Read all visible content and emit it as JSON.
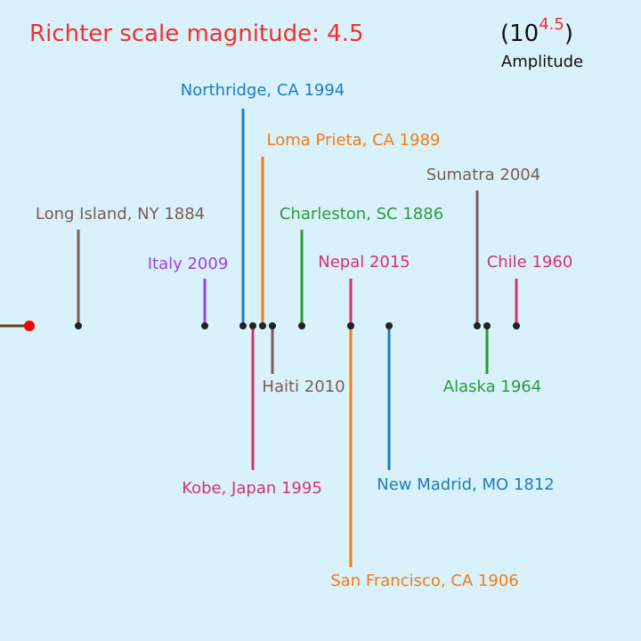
{
  "header": {
    "label": "Richter scale magnitude:",
    "magnitude": 4.5
  },
  "amplitude": {
    "open": "(10",
    "close": ")",
    "label": "Amplitude"
  },
  "events": [
    {
      "label": "Long Island, NY 1884"
    },
    {
      "label": "Italy 2009"
    },
    {
      "label": "Northridge, CA 1994"
    },
    {
      "label": "Loma Prieta, CA 1989"
    },
    {
      "label": "Kobe, Japan 1995"
    },
    {
      "label": "Haiti 2010"
    },
    {
      "label": "Charleston, SC 1886"
    },
    {
      "label": "Nepal 2015"
    },
    {
      "label": "San Francisco, CA 1906"
    },
    {
      "label": "New Madrid, MO 1812"
    },
    {
      "label": "Sumatra 2004"
    },
    {
      "label": "Alaska 1964"
    },
    {
      "label": "Chile 1960"
    }
  ]
}
